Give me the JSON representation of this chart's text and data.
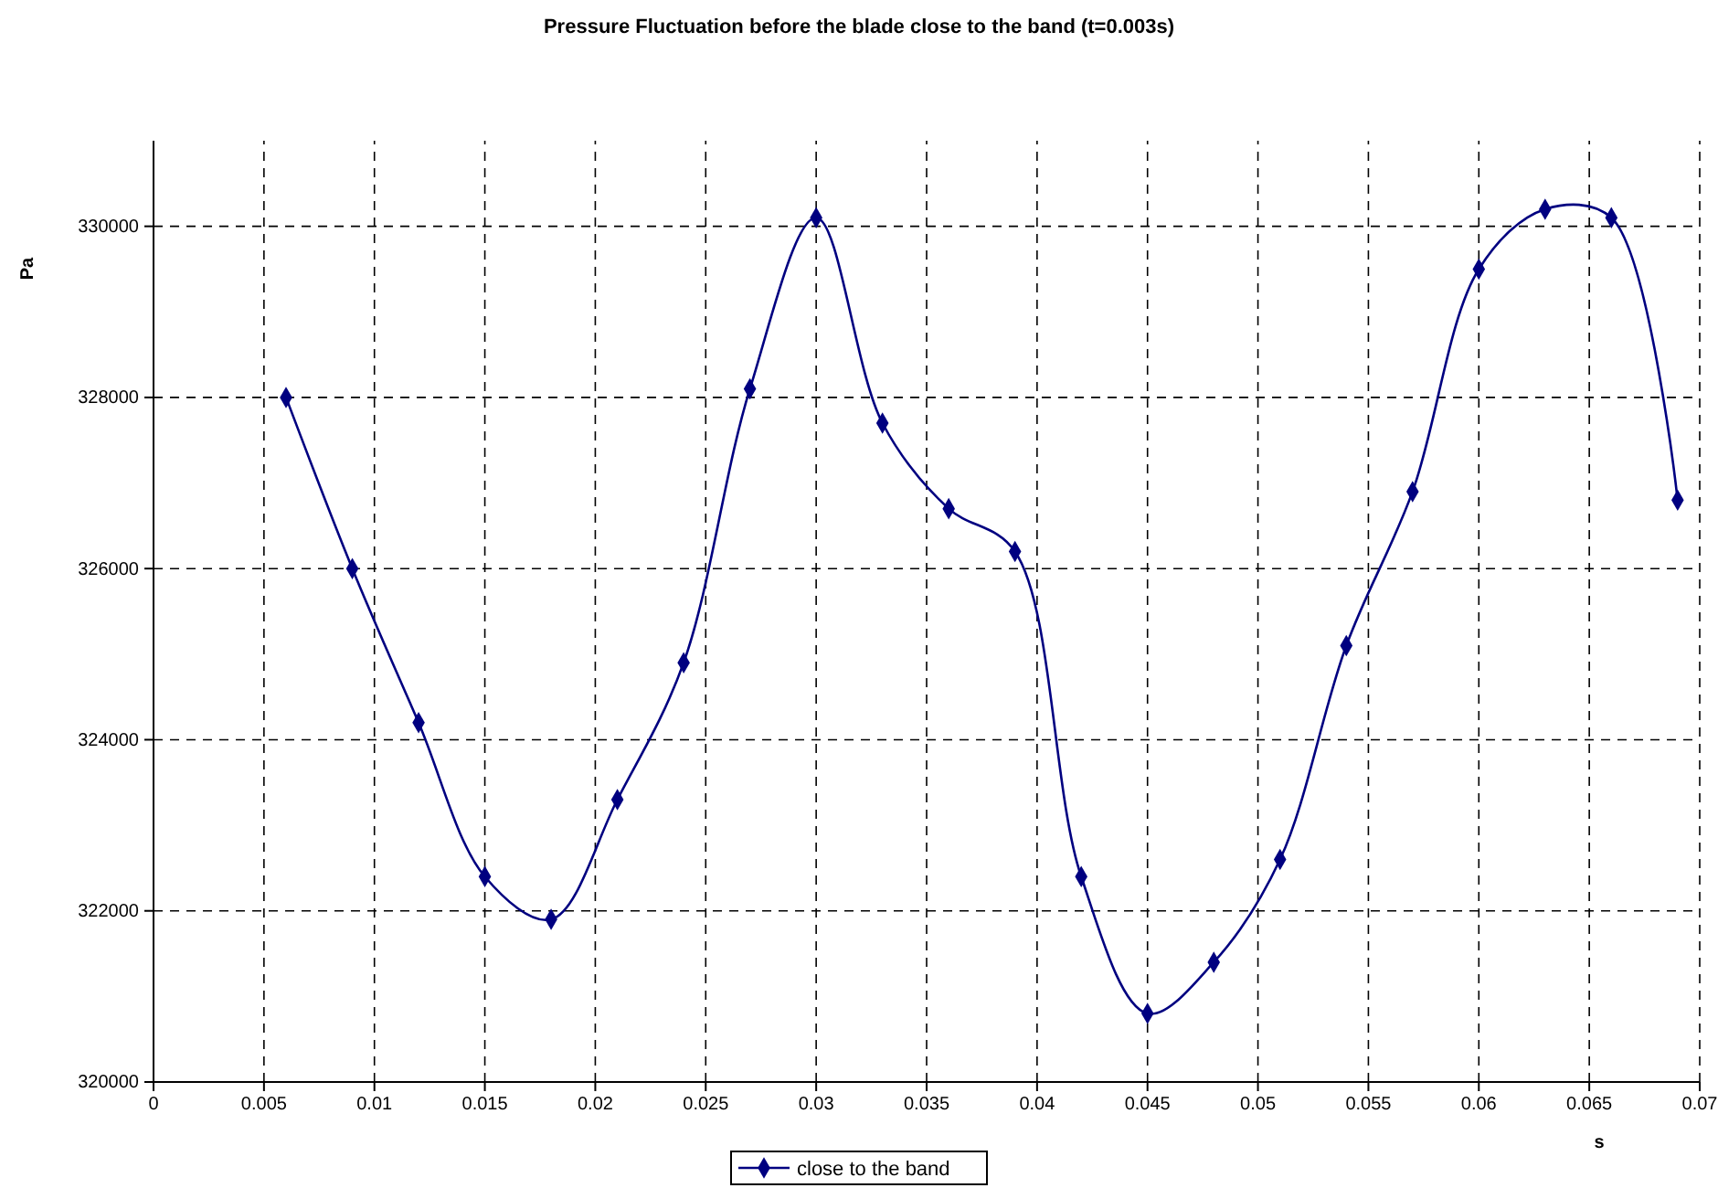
{
  "chart_data": {
    "type": "line",
    "title": "Pressure Fluctuation before the blade close to the band (t=0.003s)",
    "xlabel": "s",
    "ylabel": "Pa",
    "x": [
      0.006,
      0.009,
      0.012,
      0.015,
      0.018,
      0.021,
      0.024,
      0.027,
      0.03,
      0.033,
      0.036,
      0.039,
      0.042,
      0.045,
      0.048,
      0.051,
      0.054,
      0.057,
      0.06,
      0.063,
      0.066,
      0.069
    ],
    "series": [
      {
        "name": "close to the band",
        "color": "#000080",
        "values": [
          328000,
          326000,
          324200,
          322400,
          321900,
          323300,
          324900,
          328100,
          330100,
          327700,
          326700,
          326200,
          322400,
          320800,
          321400,
          322600,
          325100,
          326900,
          329500,
          330200,
          330100,
          326800
        ]
      }
    ],
    "xlim": [
      0,
      0.07
    ],
    "xticks": [
      0,
      0.005,
      0.01,
      0.015,
      0.02,
      0.025,
      0.03,
      0.035,
      0.04,
      0.045,
      0.05,
      0.055,
      0.06,
      0.065,
      0.07
    ],
    "ylim": [
      320000,
      331000
    ],
    "yticks": [
      320000,
      322000,
      324000,
      326000,
      328000,
      330000
    ],
    "grid": true,
    "legend": "bottom",
    "marker": "diamond",
    "line_style": "solid"
  }
}
